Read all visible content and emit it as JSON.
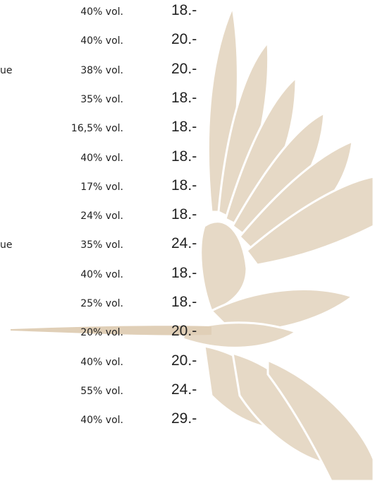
{
  "rows": [
    {
      "abv": "40% vol.",
      "price": "18.-"
    },
    {
      "abv": "40% vol.",
      "price": "20.-"
    },
    {
      "name": "ue",
      "abv": "38% vol.",
      "price": "20.-"
    },
    {
      "abv": "35% vol.",
      "price": "18.-"
    },
    {
      "abv": "16,5% vol.",
      "price": "18.-"
    },
    {
      "abv": "40% vol.",
      "price": "18.-"
    },
    {
      "abv": "17% vol.",
      "price": "18.-"
    },
    {
      "abv": "24% vol.",
      "price": "18.-"
    },
    {
      "name": "ue",
      "abv": "35% vol.",
      "price": "24.-"
    },
    {
      "abv": "40% vol.",
      "price": "18.-"
    },
    {
      "abv": "25% vol.",
      "price": "18.-"
    },
    {
      "abv": "20% vol.",
      "price": "20.-"
    },
    {
      "abv": "40% vol.",
      "price": "20.-"
    },
    {
      "abv": "55% vol.",
      "price": "24.-"
    },
    {
      "abv": "40% vol.",
      "price": "29.-"
    }
  ]
}
